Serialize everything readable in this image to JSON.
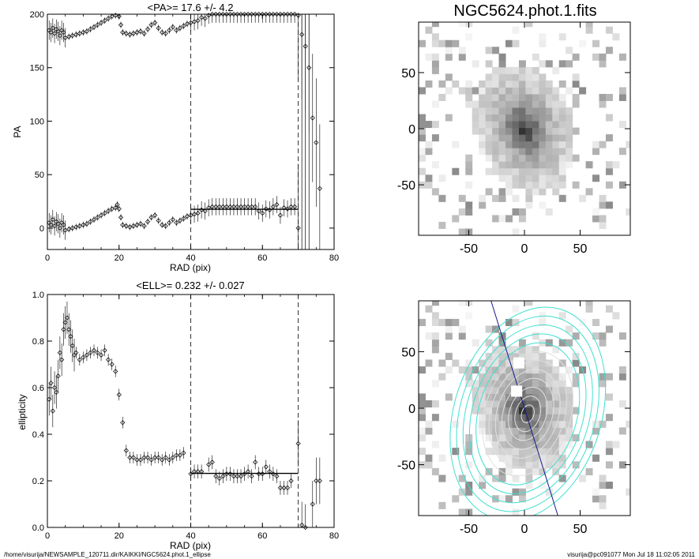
{
  "footer": {
    "path": "/home/visurija/NEWSAMPLE_120711.dir/KAIKKI/NGC5624.phot.1_ellipse",
    "user_time": "visurija@pc091077  Mon Jul 18 11:02:05 2011"
  },
  "chart_data": [
    {
      "type": "scatter",
      "panel": "pa",
      "title": "<PA>=  17.6 +/-   4.2",
      "xlabel": "RAD (pix)",
      "ylabel": "PA",
      "xlim": [
        0,
        80
      ],
      "ylim": [
        -20,
        200
      ],
      "xticks": [
        0,
        20,
        40,
        60,
        80
      ],
      "yticks": [
        0,
        50,
        100,
        150,
        200
      ],
      "vlines": [
        40,
        70
      ],
      "mean_line": {
        "x": [
          40,
          70
        ],
        "y": 17.6
      },
      "series": [
        {
          "values_x": [
            0.5,
            1,
            1.5,
            2,
            2.5,
            3,
            3.5,
            4,
            4.5,
            5,
            6,
            7,
            8,
            9,
            10,
            11,
            12,
            13,
            14,
            15,
            16,
            17,
            18,
            19,
            19.5,
            20,
            20.5,
            21,
            22,
            23,
            24,
            25,
            26,
            27,
            28,
            29,
            30,
            31,
            32,
            33,
            34,
            35,
            36,
            37,
            38,
            39,
            40,
            41,
            42,
            43,
            44,
            45,
            46,
            47,
            48,
            49,
            50,
            51,
            52,
            53,
            54,
            55,
            56,
            57,
            58,
            59,
            60,
            61,
            62,
            63,
            64,
            65,
            66,
            67,
            68,
            69,
            70,
            71,
            72,
            73,
            74,
            75,
            76
          ],
          "values_y": [
            185,
            183,
            187,
            182,
            186,
            184,
            180,
            185,
            183,
            178,
            179,
            180,
            181,
            182,
            183,
            184,
            186,
            188,
            190,
            192,
            194,
            196,
            198,
            199,
            202,
            198,
            190,
            183,
            182,
            181,
            182,
            183,
            184,
            182,
            186,
            190,
            192,
            187,
            183,
            182,
            185,
            188,
            185,
            187,
            189,
            191,
            192,
            193,
            194,
            197,
            196,
            199,
            200,
            200,
            200,
            200,
            200,
            200,
            200,
            200,
            200,
            200,
            200,
            200,
            200,
            200,
            200,
            200,
            200,
            200,
            200,
            200,
            200,
            200,
            200,
            200,
            199,
            181,
            170,
            150,
            103,
            80,
            37
          ]
        },
        {
          "values_x": [
            0.5,
            1,
            1.5,
            2,
            2.5,
            3,
            3.5,
            4,
            4.5,
            5,
            6,
            7,
            8,
            9,
            10,
            11,
            12,
            13,
            14,
            15,
            16,
            17,
            18,
            19,
            19.5,
            20,
            20.5,
            21,
            22,
            23,
            24,
            25,
            26,
            27,
            28,
            29,
            30,
            31,
            32,
            33,
            34,
            35,
            36,
            37,
            38,
            39,
            40,
            41,
            42,
            43,
            44,
            45,
            46,
            47,
            48,
            49,
            50,
            51,
            52,
            53,
            54,
            55,
            56,
            57,
            58,
            59,
            60,
            61,
            62,
            63,
            64,
            65,
            66,
            67,
            68,
            69,
            70
          ],
          "values_y": [
            5,
            3,
            8,
            2,
            6,
            4,
            0,
            5,
            3,
            -2,
            -1,
            0,
            1,
            2,
            3,
            4,
            6,
            8,
            10,
            12,
            14,
            16,
            18,
            19,
            22,
            18,
            10,
            3,
            2,
            1,
            2,
            3,
            4,
            2,
            6,
            10,
            12,
            7,
            3,
            2,
            5,
            8,
            5,
            7,
            9,
            11,
            12,
            13,
            14,
            17,
            16,
            19,
            20,
            20,
            20,
            20,
            20,
            20,
            20,
            20,
            20,
            20,
            20,
            20,
            20,
            16,
            14,
            18,
            17,
            20,
            22,
            12,
            19,
            18,
            20,
            20,
            0
          ]
        }
      ]
    },
    {
      "type": "scatter",
      "panel": "ell",
      "title": "<ELL>= 0.232 +/-  0.027",
      "xlabel": "RAD (pix)",
      "ylabel": "ellipticity",
      "xlim": [
        0,
        80
      ],
      "ylim": [
        0.0,
        1.0
      ],
      "xticks": [
        0,
        20,
        40,
        60,
        80
      ],
      "yticks": [
        0.0,
        0.2,
        0.4,
        0.6,
        0.8,
        1.0
      ],
      "vlines": [
        40,
        70
      ],
      "mean_line": {
        "x": [
          40,
          70
        ],
        "y": 0.232
      },
      "series": [
        {
          "values_x": [
            0.5,
            1,
            1.5,
            2,
            2.5,
            3,
            3.5,
            4,
            4.5,
            5,
            5.5,
            6,
            6.5,
            7,
            7.5,
            8,
            9,
            10,
            11,
            12,
            13,
            14,
            15,
            16,
            17,
            18,
            19,
            20,
            21,
            22,
            23,
            24,
            25,
            26,
            27,
            28,
            29,
            30,
            31,
            32,
            33,
            34,
            35,
            36,
            37,
            38,
            40,
            41,
            42,
            43,
            45,
            46,
            47,
            48,
            49,
            50,
            51,
            52,
            53,
            54,
            55,
            56,
            57,
            58,
            59,
            60,
            61,
            62,
            63,
            64,
            65,
            66,
            67,
            68,
            70,
            71,
            72,
            74,
            75,
            76
          ],
          "values_y": [
            0.55,
            0.62,
            0.5,
            0.6,
            0.58,
            0.65,
            0.75,
            0.72,
            0.85,
            0.88,
            0.9,
            0.85,
            0.82,
            0.78,
            0.74,
            0.75,
            0.72,
            0.73,
            0.74,
            0.75,
            0.76,
            0.75,
            0.74,
            0.76,
            0.72,
            0.7,
            0.67,
            0.57,
            0.45,
            0.33,
            0.3,
            0.3,
            0.29,
            0.29,
            0.3,
            0.3,
            0.29,
            0.3,
            0.3,
            0.29,
            0.3,
            0.29,
            0.3,
            0.31,
            0.31,
            0.32,
            0.23,
            0.24,
            0.24,
            0.24,
            0.27,
            0.28,
            0.22,
            0.21,
            0.22,
            0.23,
            0.23,
            0.22,
            0.22,
            0.22,
            0.23,
            0.24,
            0.22,
            0.28,
            0.23,
            0.23,
            0.26,
            0.24,
            0.23,
            0.22,
            0.17,
            0.17,
            0.17,
            0.2,
            0.36,
            0.01,
            0.0,
            0.1,
            0.2,
            0.2
          ]
        }
      ]
    },
    {
      "type": "heatmap",
      "panel": "image",
      "title": "NGC5624.phot.1.fits",
      "xlim": [
        -95,
        95
      ],
      "ylim": [
        -95,
        95
      ],
      "xticks": [
        -50,
        0,
        50
      ],
      "yticks": [
        -50,
        0,
        50
      ],
      "colormap": "inverted grayscale"
    },
    {
      "type": "heatmap",
      "panel": "image-contours",
      "title": "",
      "xlim": [
        -95,
        95
      ],
      "ylim": [
        -95,
        95
      ],
      "xticks": [
        -50,
        0,
        50
      ],
      "yticks": [
        -50,
        0,
        50
      ],
      "contour_color_outer": "#40e0d0",
      "contour_color_inner": "#e0e0e0",
      "axis_line_color": "#1a1a8c"
    }
  ]
}
